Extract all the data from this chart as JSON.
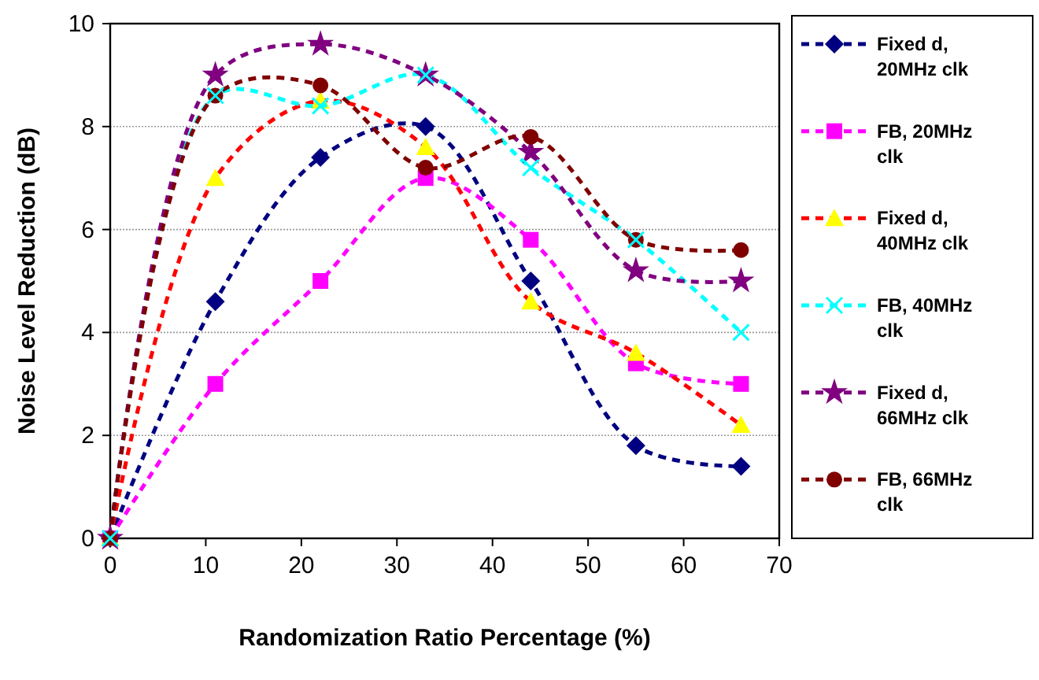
{
  "chart_data": {
    "type": "line",
    "xlabel": "Randomization Ratio Percentage (%)",
    "ylabel": "Noise Level Reduction (dB)",
    "x": [
      0,
      11,
      22,
      33,
      44,
      55,
      66
    ],
    "xlim": [
      0,
      70
    ],
    "xticks": [
      0,
      10,
      20,
      30,
      40,
      50,
      60,
      70
    ],
    "ylim": [
      0,
      10
    ],
    "yticks": [
      0,
      2,
      4,
      6,
      8,
      10
    ],
    "grid": "y",
    "legend": "right",
    "line_style": "dashed",
    "series": [
      {
        "name": "Fixed d, 20MHz clk",
        "color": "#000080",
        "marker": "diamond",
        "values": [
          0,
          4.6,
          7.4,
          8.0,
          5.0,
          1.8,
          1.4
        ]
      },
      {
        "name": "FB, 20MHz clk",
        "color": "#ff00ff",
        "marker": "square",
        "values": [
          0,
          3.0,
          5.0,
          7.0,
          5.8,
          3.4,
          3.0
        ]
      },
      {
        "name": "Fixed d, 40MHz clk",
        "color": "#ff0000",
        "colors": [
          "#ffff00",
          "#ffff00",
          "#ffff00",
          "#ffff00",
          "#ffff00",
          "#ffff00",
          "#ffff00"
        ],
        "marker": "triangle",
        "values": [
          0,
          7.0,
          8.5,
          7.6,
          4.6,
          3.6,
          2.2
        ]
      },
      {
        "name": "FB, 40MHz clk",
        "color": "#00ffff",
        "marker": "cross",
        "values": [
          0,
          8.6,
          8.4,
          9.0,
          7.2,
          5.8,
          4.0
        ]
      },
      {
        "name": "Fixed d, 66MHz clk",
        "color": "#800080",
        "marker": "star",
        "values": [
          0,
          9.0,
          9.6,
          9.0,
          7.5,
          5.2,
          5.0
        ]
      },
      {
        "name": "FB, 66MHz clk",
        "color": "#800000",
        "marker": "circle",
        "values": [
          0,
          8.6,
          8.8,
          7.2,
          7.8,
          5.8,
          5.6
        ]
      }
    ]
  }
}
